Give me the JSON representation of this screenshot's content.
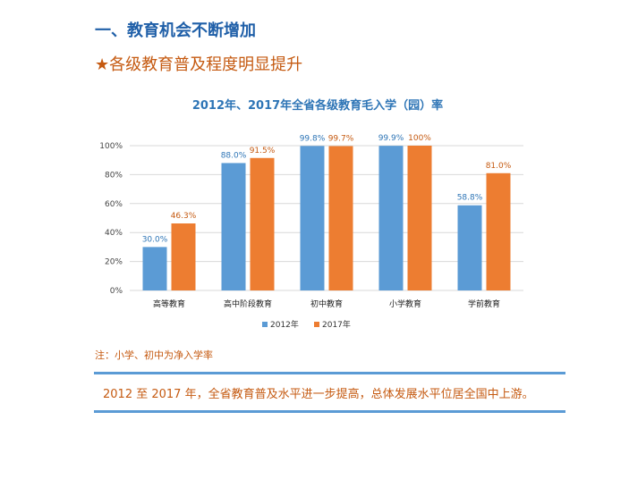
{
  "header": {
    "title": "一、教育机会不断增加",
    "subtitle_star": "★",
    "subtitle": "各级教育普及程度明显提升"
  },
  "chart_data": {
    "type": "bar",
    "title": "2012年、2017年全省各级教育毛入学（园）率",
    "categories": [
      "高等教育",
      "高中阶段教育",
      "初中教育",
      "小学教育",
      "学前教育"
    ],
    "series": [
      {
        "name": "2012年",
        "values": [
          30.0,
          88.0,
          99.8,
          99.9,
          58.8
        ],
        "labels": [
          "30.0%",
          "88.0%",
          "99.8%",
          "99.9%",
          "58.8%"
        ],
        "color": "#5b9bd5"
      },
      {
        "name": "2017年",
        "values": [
          46.3,
          91.5,
          99.7,
          100,
          81.0
        ],
        "labels": [
          "46.3%",
          "91.5%",
          "99.7%",
          "100%",
          "81.0%"
        ],
        "color": "#ed7d31"
      }
    ],
    "ylim": [
      0,
      100
    ],
    "yticks": [
      "0%",
      "20%",
      "40%",
      "60%",
      "80%",
      "100%"
    ],
    "grid": true,
    "legend": "bottom"
  },
  "note": "注：小学、初中为净入学率",
  "summary": "2012 至 2017 年，全省教育普及水平进一步提高，总体发展水平位居全国中上游。"
}
